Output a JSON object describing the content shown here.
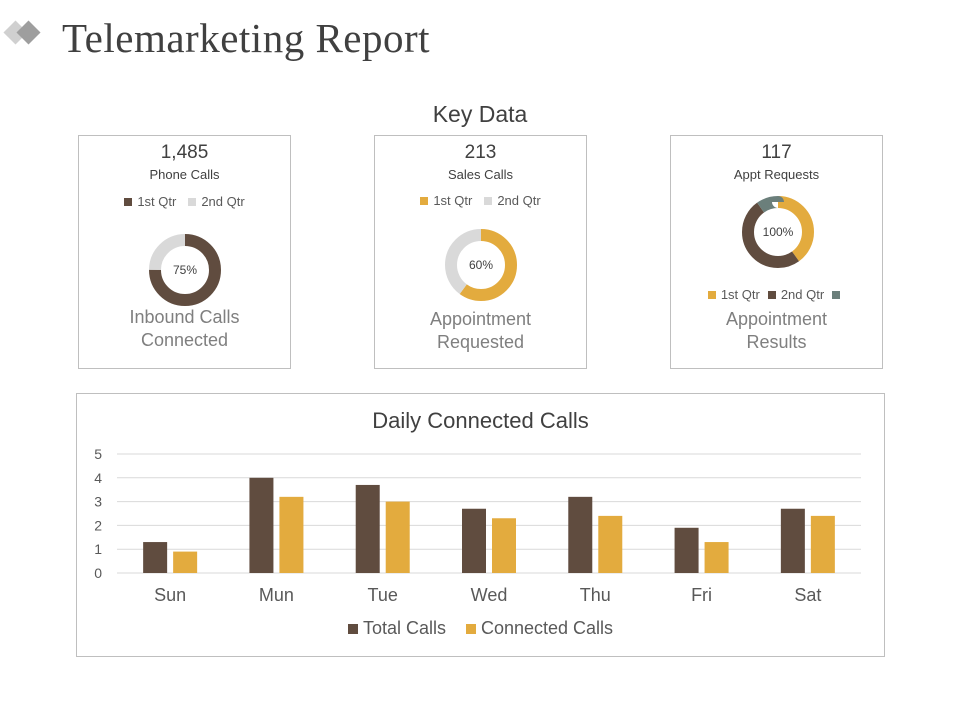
{
  "page": {
    "title": "Telemarketing Report",
    "section_title": "Key Data"
  },
  "colors": {
    "brown": "#604c3f",
    "gold": "#e3ab3e",
    "light_gray": "#d9d9d9",
    "slate": "#6b7f7b"
  },
  "cards": [
    {
      "value": "1,485",
      "subtitle": "Phone Calls",
      "legend": [
        "1st Qtr",
        "2nd Qtr"
      ],
      "center_label": "75%",
      "caption_line1": "Inbound Calls",
      "caption_line2": "Connected"
    },
    {
      "value": "213",
      "subtitle": "Sales Calls",
      "legend": [
        "1st Qtr",
        "2nd Qtr"
      ],
      "center_label": "60%",
      "caption_line1": "Appointment",
      "caption_line2": "Requested"
    },
    {
      "value": "117",
      "subtitle": "Appt Requests",
      "legend": [
        "1st Qtr",
        "2nd Qtr",
        ""
      ],
      "center_label": "100%",
      "caption_line1": "Appointment",
      "caption_line2": "Results"
    }
  ],
  "chart_data": [
    {
      "type": "pie",
      "variant": "donut",
      "labels": [
        "1st Qtr",
        "2nd Qtr"
      ],
      "values": [
        75,
        25
      ],
      "colors": [
        "#604c3f",
        "#d9d9d9"
      ],
      "center_label": "75%"
    },
    {
      "type": "pie",
      "variant": "donut",
      "labels": [
        "1st Qtr",
        "2nd Qtr"
      ],
      "values": [
        60,
        40
      ],
      "colors": [
        "#e3ab3e",
        "#d9d9d9"
      ],
      "center_label": "60%"
    },
    {
      "type": "pie",
      "variant": "donut",
      "labels": [
        "1st Qtr",
        "2nd Qtr",
        ""
      ],
      "values": [
        40,
        50,
        10
      ],
      "colors": [
        "#e3ab3e",
        "#604c3f",
        "#6b7f7b"
      ],
      "center_label": "100%"
    },
    {
      "type": "bar",
      "title": "Daily Connected Calls",
      "categories": [
        "Sun",
        "Mun",
        "Tue",
        "Wed",
        "Thu",
        "Fri",
        "Sat"
      ],
      "series": [
        {
          "name": "Total Calls",
          "values": [
            1.3,
            4.0,
            3.7,
            2.7,
            3.2,
            1.9,
            2.7
          ],
          "color": "#604c3f"
        },
        {
          "name": "Connected Calls",
          "values": [
            0.9,
            3.2,
            3.0,
            2.3,
            2.4,
            1.3,
            2.4
          ],
          "color": "#e3ab3e"
        }
      ],
      "ylim": [
        0,
        5
      ],
      "yticks": [
        "0",
        "1",
        "2",
        "3",
        "4",
        "5"
      ],
      "grid": true,
      "legend_position": "bottom"
    }
  ]
}
